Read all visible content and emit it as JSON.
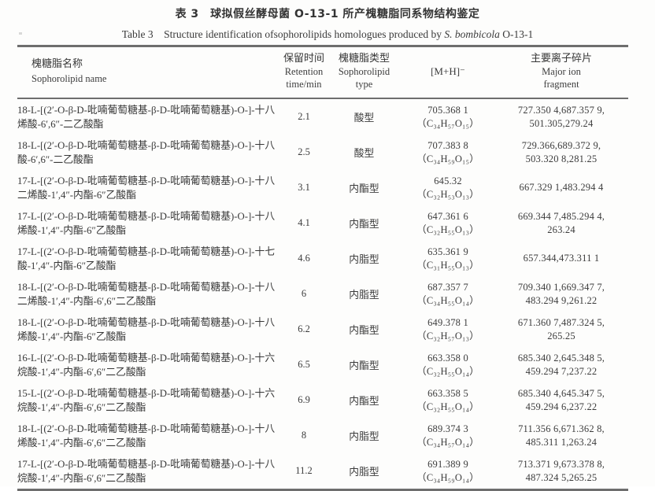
{
  "page": {
    "background": "#fdfdfc",
    "text_color": "#3b3b3b",
    "rule_color": "#6e6e6e"
  },
  "table": {
    "title_zh": "表 3　球拟假丝酵母菌 O-13-1 所产槐糖脂同系物结构鉴定",
    "title_en": {
      "prefix": "Table 3　Structure identification ofsophorolipids homologues produced by ",
      "italic": "S. bombicola",
      "suffix": " O-13-1"
    },
    "header": {
      "name_zh": "槐糖脂名称",
      "name_en": "Sophorolipid name",
      "rt_zh": "保留时间",
      "rt_en1": "Retention",
      "rt_en2": "time/min",
      "type_zh": "槐糖脂类型",
      "type_en1": "Sophorolipid",
      "type_en2": "type",
      "mh": "[M+H]⁻",
      "frag_zh": "主要离子碎片",
      "frag_en1": "Major ion",
      "frag_en2": "fragment"
    },
    "rows": [
      {
        "name": "18-L-[(2′-O-β-D-吡喃葡萄糖基-β-D-吡喃葡萄糖基)-O-]-十八烯酸-6′,6″-二乙酸酯",
        "retention": "2.1",
        "type": "酸型",
        "mh": "705.368 1",
        "formula": "（C₃₄H₅₇O₁₅）",
        "frag1": "727.350 4,687.357 9,",
        "frag2": "501.305,279.24"
      },
      {
        "name": "18-L-[(2′-O-β-D-吡喃葡萄糖基-β-D-吡喃葡萄糖基)-O-]-十八酸-6′,6″-二乙酸酯",
        "retention": "2.5",
        "type": "酸型",
        "mh": "707.383 8",
        "formula": "（C₃₄H₅₉O₁₅）",
        "frag1": "729.366,689.372 9,",
        "frag2": "503.320 8,281.25"
      },
      {
        "name": "17-L-[(2′-O-β-D-吡喃葡萄糖基-β-D-吡喃葡萄糖基)-O-]-十八二烯酸-1′,4″-内酯-6″乙酸酯",
        "retention": "3.1",
        "type": "内酯型",
        "mh": "645.32",
        "formula": "（C₃₂H₅₃O₁₃）",
        "frag1": "667.329 1,483.294 4",
        "frag2": ""
      },
      {
        "name": "17-L-[(2′-O-β-D-吡喃葡萄糖基-β-D-吡喃葡萄糖基)-O-]-十八烯酸-1′,4″-内酯-6″乙酸酯",
        "retention": "4.1",
        "type": "内酯型",
        "mh": "647.361 6",
        "formula": "（C₃₂H₅₅O₁₃）",
        "frag1": "669.344 7,485.294 4,",
        "frag2": "263.24"
      },
      {
        "name": "17-L-[(2′-O-β-D-吡喃葡萄糖基-β-D-吡喃葡萄糖基)-O-]-十七酸-1′,4″-内酯-6″乙酸酯",
        "retention": "4.6",
        "type": "内脂型",
        "mh": "635.361 9",
        "formula": "（C₃₁H₅₅O₁₃）",
        "frag1": "657.344,473.311 1",
        "frag2": ""
      },
      {
        "name": "18-L-[(2′-O-β-D-吡喃葡萄糖基-β-D-吡喃葡萄糖基)-O-]-十八二烯酸-1′,4″-内酯-6′,6″二乙酸酯",
        "retention": "6",
        "type": "内脂型",
        "mh": "687.357 7",
        "formula": "（C₃₄H₅₅O₁₄）",
        "frag1": "709.340 1,669.347 7,",
        "frag2": "483.294 9,261.22"
      },
      {
        "name": "18-L-[(2′-O-β-D-吡喃葡萄糖基-β-D-吡喃葡萄糖基)-O-]-十八烯酸-1′,4″-内酯-6″乙酸酯",
        "retention": "6.2",
        "type": "内酯型",
        "mh": "649.378 1",
        "formula": "（C₃₂H₅₇O₁₃）",
        "frag1": "671.360 7,487.324 5,",
        "frag2": "265.25"
      },
      {
        "name": "16-L-[(2′-O-β-D-吡喃葡萄糖基-β-D-吡喃葡萄糖基)-O-]-十六烷酸-1′,4″-内酯-6′,6″二乙酸酯",
        "retention": "6.5",
        "type": "内酯型",
        "mh": "663.358 0",
        "formula": "（C₃₂H₅₅O₁₄）",
        "frag1": "685.340 2,645.348 5,",
        "frag2": "459.294 7,237.22"
      },
      {
        "name": "15-L-[(2′-O-β-D-吡喃葡萄糖基-β-D-吡喃葡萄糖基)-O-]-十六烷酸-1′,4″-内酯-6′,6″二乙酸酯",
        "retention": "6.9",
        "type": "内酯型",
        "mh": "663.358 5",
        "formula": "（C₃₂H₅₅O₁₄）",
        "frag1": "685.340 4,645.347 5,",
        "frag2": "459.294 6,237.22"
      },
      {
        "name": "18-L-[(2′-O-β-D-吡喃葡萄糖基-β-D-吡喃葡萄糖基)-O-]-十八烯酸-1′,4″-内酯-6′,6″二乙酸酯",
        "retention": "8",
        "type": "内脂型",
        "mh": "689.374 3",
        "formula": "（C₃₄H₅₇O₁₄）",
        "frag1": "711.356 6,671.362 8,",
        "frag2": "485.311 1,263.24"
      },
      {
        "name": "17-L-[(2′-O-β-D-吡喃葡萄糖基-β-D-吡喃葡萄糖基)-O-]-十八烷酸-1′,4″-内酯-6′,6″二乙酸酯",
        "retention": "11.2",
        "type": "内脂型",
        "mh": "691.389 9",
        "formula": "（C₃₄H₅₉O₁₄）",
        "frag1": "713.371 9,673.378 8,",
        "frag2": "487.324 5,265.25"
      }
    ]
  }
}
